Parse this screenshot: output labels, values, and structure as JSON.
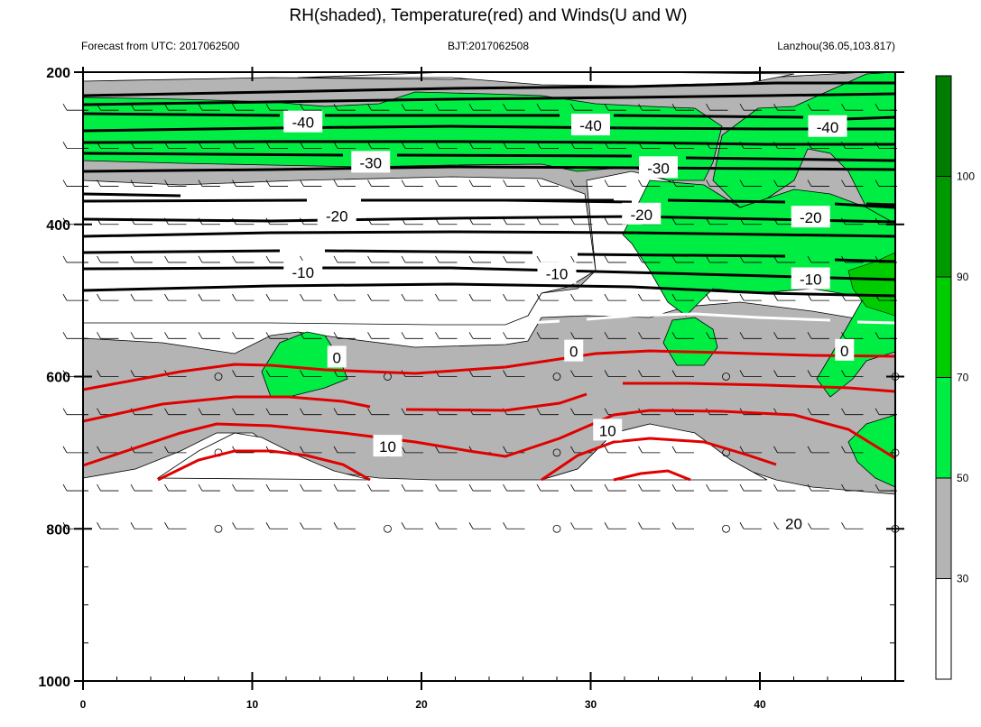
{
  "chart_data": {
    "type": "contour",
    "title": "RH(shaded), Temperature(red) and Winds(U and W)",
    "left_string": "Forecast from UTC: 2017062500",
    "center_string": "BJT:2017062508",
    "right_string": "Lanzhou(36.05,103.817)",
    "x_ticks": [
      0,
      10,
      20,
      30,
      40
    ],
    "x_range": [
      0,
      48
    ],
    "y_ticks": [
      200,
      400,
      600,
      800,
      1000
    ],
    "y_range": [
      200,
      1000
    ],
    "y_reversed": true,
    "colorbar": {
      "levels": [
        30,
        50,
        70,
        90,
        100
      ],
      "colors": [
        "#ffffff",
        "#b4b4b4",
        "#00ee44",
        "#00cc00",
        "#009a00",
        "#007d00"
      ]
    },
    "temperature_contour_labels": [
      {
        "label": "-40",
        "x": 13,
        "y": 266
      },
      {
        "label": "-40",
        "x": 30,
        "y": 270
      },
      {
        "label": "-40",
        "x": 44,
        "y": 272
      },
      {
        "label": "-30",
        "x": 17,
        "y": 319
      },
      {
        "label": "-30",
        "x": 34,
        "y": 326
      },
      {
        "label": "-20",
        "x": 15,
        "y": 389
      },
      {
        "label": "-20",
        "x": 33,
        "y": 387
      },
      {
        "label": "-20",
        "x": 43,
        "y": 391
      },
      {
        "label": "-10",
        "x": 13,
        "y": 463
      },
      {
        "label": "-10",
        "x": 28,
        "y": 465
      },
      {
        "label": "-10",
        "x": 43,
        "y": 472
      },
      {
        "label": "0",
        "x": 15,
        "y": 575
      },
      {
        "label": "0",
        "x": 29,
        "y": 567
      },
      {
        "label": "0",
        "x": 45,
        "y": 566
      },
      {
        "label": "10",
        "x": 18,
        "y": 692
      },
      {
        "label": "10",
        "x": 31,
        "y": 671
      },
      {
        "label": "20",
        "x": 42,
        "y": 793
      }
    ]
  }
}
